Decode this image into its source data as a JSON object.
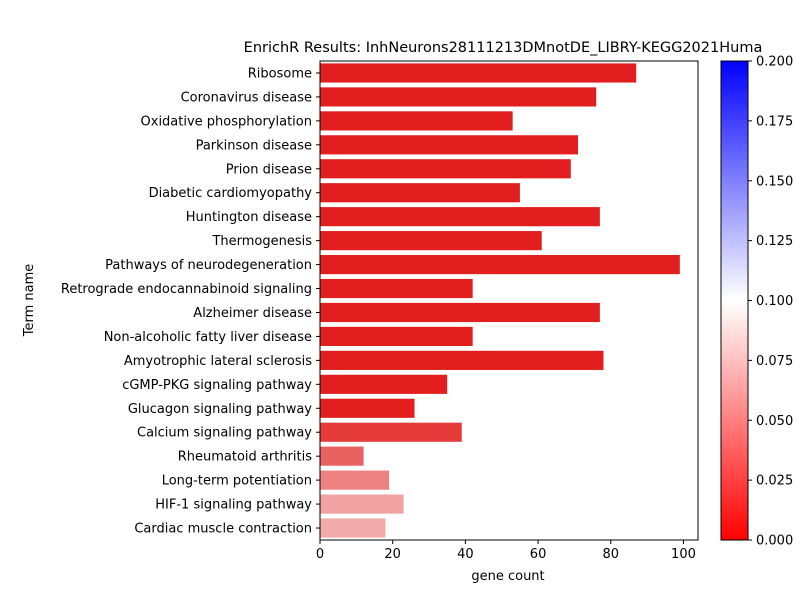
{
  "chart_data": {
    "type": "bar",
    "orientation": "horizontal",
    "title": "EnrichR Results: InhNeurons28111213DMnotDE_LIBRY-KEGG2021Huma",
    "xlabel": "gene count",
    "ylabel": "Term name",
    "xlim": [
      0,
      104
    ],
    "x_ticks": [
      "0",
      "20",
      "40",
      "60",
      "80",
      "100"
    ],
    "grid": false,
    "categories": [
      "Ribosome",
      "Coronavirus disease",
      "Oxidative phosphorylation",
      "Parkinson disease",
      "Prion disease",
      "Diabetic cardiomyopathy",
      "Huntington disease",
      "Thermogenesis",
      "Pathways of neurodegeneration",
      "Retrograde endocannabinoid signaling",
      "Alzheimer disease",
      "Non-alcoholic fatty liver disease",
      "Amyotrophic lateral sclerosis",
      "cGMP-PKG signaling pathway",
      "Glucagon signaling pathway",
      "Calcium signaling pathway",
      "Rheumatoid arthritis",
      "Long-term potentiation",
      "HIF-1 signaling pathway",
      "Cardiac muscle contraction"
    ],
    "values": [
      87,
      76,
      53,
      71,
      69,
      55,
      77,
      61,
      99,
      42,
      77,
      42,
      78,
      35,
      26,
      39,
      12,
      19,
      23,
      18
    ],
    "bar_colors": [
      "#e31e1e",
      "#e31e1e",
      "#e31e1e",
      "#e31e1e",
      "#e31e1e",
      "#e31e1e",
      "#e31e1e",
      "#e31e1e",
      "#e31e1e",
      "#e31e1e",
      "#e31e1e",
      "#e31e1e",
      "#e31e1e",
      "#e31e1e",
      "#e31e1e",
      "#e63b3b",
      "#ea6161",
      "#ee8282",
      "#f2a2a2",
      "#f3aaaa"
    ],
    "colorbar": {
      "range": [
        0,
        0.2
      ],
      "ticks": [
        "0.000",
        "0.025",
        "0.050",
        "0.075",
        "0.100",
        "0.125",
        "0.150",
        "0.175",
        "0.200"
      ],
      "colors": [
        "#ff0000",
        "#ffffff",
        "#0000ff"
      ]
    }
  }
}
